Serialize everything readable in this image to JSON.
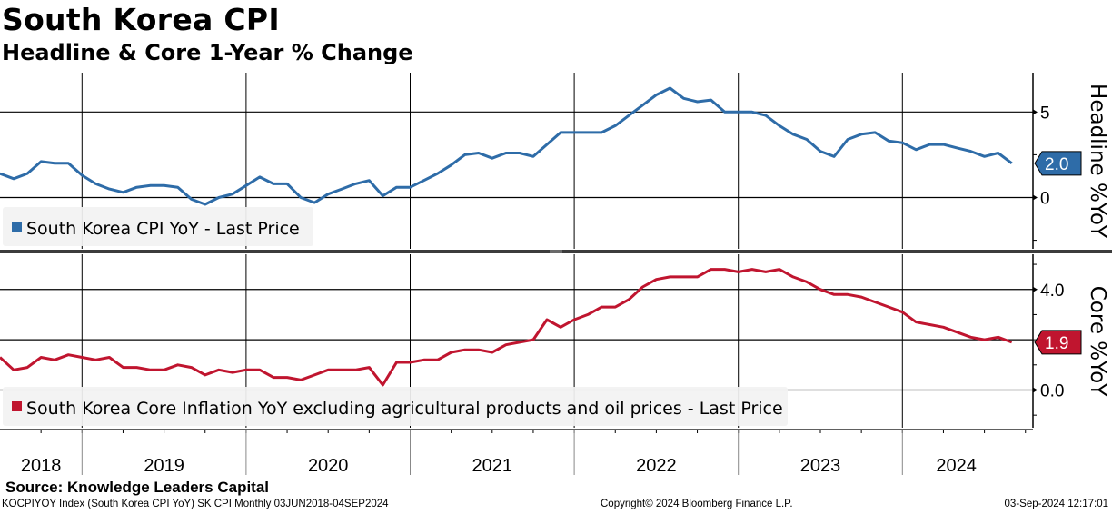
{
  "header": {
    "title": "South Korea CPI",
    "subtitle": "Headline & Core 1-Year % Change"
  },
  "footer": {
    "source": "Source: Knowledge Leaders Capital",
    "ticker_info": "KOCPIYOY Index (South Korea CPI YoY) SK CPI  Monthly 03JUN2018-04SEP2024",
    "copyright": "Copyright© 2024 Bloomberg Finance L.P.",
    "timestamp": "03-Sep-2024 12:17:01"
  },
  "chart_data": [
    {
      "type": "line",
      "title": "Headline",
      "ylabel": "Headline %YoY",
      "ylim": [
        -3.0,
        7.3
      ],
      "yticks": [
        "5",
        "0"
      ],
      "ytick_values": [
        5,
        0
      ],
      "x_start": "Jun 2018",
      "x_end": "Aug 2024",
      "x_frequency": "monthly",
      "xtick_labels": [
        "2018",
        "2019",
        "2020",
        "2021",
        "2022",
        "2023",
        "2024"
      ],
      "grid": true,
      "legend": "bottom-left",
      "series": [
        {
          "name": "South Korea CPI YoY - Last Price",
          "color": "#2e6ca8",
          "last_value_label": "2.0",
          "values": [
            1.4,
            1.1,
            1.4,
            2.1,
            2.0,
            2.0,
            1.3,
            0.8,
            0.5,
            0.3,
            0.6,
            0.7,
            0.7,
            0.6,
            -0.1,
            -0.4,
            0.0,
            0.2,
            0.7,
            1.2,
            0.8,
            0.8,
            0.0,
            -0.3,
            0.2,
            0.5,
            0.8,
            1.0,
            0.1,
            0.6,
            0.6,
            1.0,
            1.4,
            1.9,
            2.5,
            2.6,
            2.3,
            2.6,
            2.6,
            2.4,
            3.1,
            3.8,
            3.8,
            3.8,
            3.8,
            4.2,
            4.8,
            5.4,
            6.0,
            6.4,
            5.8,
            5.6,
            5.7,
            5.0,
            5.0,
            5.0,
            4.8,
            4.2,
            3.7,
            3.4,
            2.7,
            2.4,
            3.4,
            3.7,
            3.8,
            3.3,
            3.2,
            2.8,
            3.1,
            3.1,
            2.9,
            2.7,
            2.4,
            2.6,
            2.0
          ]
        }
      ]
    },
    {
      "type": "line",
      "title": "Core",
      "ylabel": "Core %YoY",
      "ylim": [
        -1.5,
        5.4
      ],
      "yticks": [
        "4.0",
        "0.0"
      ],
      "ytick_values": [
        4,
        0
      ],
      "extra_gridlines": [
        2
      ],
      "x_start": "Jun 2018",
      "x_end": "Aug 2024",
      "x_frequency": "monthly",
      "xtick_labels": [
        "2018",
        "2019",
        "2020",
        "2021",
        "2022",
        "2023",
        "2024"
      ],
      "grid": true,
      "legend": "bottom-left",
      "series": [
        {
          "name": "South Korea Core Inflation YoY excluding agricultural products and oil prices - Last Price",
          "color": "#c0152f",
          "last_value_label": "1.9",
          "values": [
            1.3,
            0.8,
            0.9,
            1.3,
            1.2,
            1.4,
            1.3,
            1.2,
            1.3,
            0.9,
            0.9,
            0.8,
            0.8,
            1.0,
            0.9,
            0.6,
            0.8,
            0.7,
            0.8,
            0.8,
            0.5,
            0.5,
            0.4,
            0.6,
            0.8,
            0.8,
            0.8,
            0.9,
            0.2,
            1.1,
            1.1,
            1.2,
            1.2,
            1.5,
            1.6,
            1.6,
            1.5,
            1.8,
            1.9,
            2.0,
            2.8,
            2.5,
            2.8,
            3.0,
            3.3,
            3.3,
            3.6,
            4.1,
            4.4,
            4.5,
            4.5,
            4.5,
            4.8,
            4.8,
            4.7,
            4.8,
            4.7,
            4.8,
            4.5,
            4.3,
            4.0,
            3.8,
            3.8,
            3.7,
            3.5,
            3.3,
            3.1,
            2.7,
            2.6,
            2.5,
            2.3,
            2.1,
            2.0,
            2.1,
            1.9
          ]
        }
      ]
    }
  ]
}
